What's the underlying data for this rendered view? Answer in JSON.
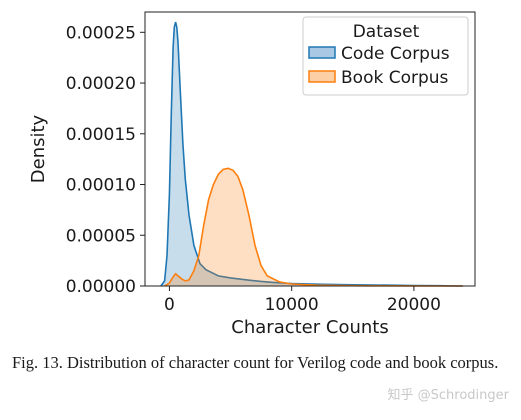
{
  "chart_data": {
    "type": "area",
    "xlabel": "Character Counts",
    "ylabel": "Density",
    "xlim": [
      -2000,
      25000
    ],
    "ylim": [
      0,
      0.00027
    ],
    "x_ticks": [
      0,
      10000,
      20000
    ],
    "x_tick_labels": [
      "0",
      "10000",
      "20000"
    ],
    "y_ticks": [
      0,
      5e-05,
      0.0001,
      0.00015,
      0.0002,
      0.00025
    ],
    "y_tick_labels": [
      "0.00000",
      "0.00005",
      "0.00010",
      "0.00015",
      "0.00020",
      "0.00025"
    ],
    "grid": false,
    "legend": {
      "title": "Dataset",
      "position": "top-right"
    },
    "series": [
      {
        "name": "Code Corpus",
        "color": "#1f77b4",
        "fill": "#a9c8e3",
        "x": [
          -700,
          -400,
          -200,
          0,
          150,
          300,
          400,
          500,
          600,
          700,
          900,
          1100,
          1300,
          1600,
          2000,
          2500,
          3000,
          3500,
          4000,
          5000,
          6000,
          6700,
          7500,
          8500,
          10000,
          12000,
          15000,
          18000,
          20000,
          22000,
          24000
        ],
        "y": [
          0,
          5e-06,
          3e-05,
          9e-05,
          0.00017,
          0.000235,
          0.000255,
          0.00026,
          0.000255,
          0.00024,
          0.00019,
          0.00014,
          0.000105,
          7e-05,
          4e-05,
          2.2e-05,
          1.6e-05,
          1.3e-05,
          1e-05,
          8e-06,
          6.5e-06,
          5.5e-06,
          4.5e-06,
          3.5e-06,
          2.5e-06,
          1.8e-06,
          1.2e-06,
          8e-07,
          5e-07,
          3e-07,
          0
        ]
      },
      {
        "name": "Book Corpus",
        "color": "#ff7f0e",
        "fill": "#fcd0a4",
        "x": [
          -400,
          0,
          300,
          500,
          700,
          1000,
          1300,
          1600,
          2000,
          2400,
          2800,
          3200,
          3600,
          4000,
          4400,
          4800,
          5200,
          5600,
          6000,
          6500,
          7000,
          7500,
          8000,
          9000,
          10000,
          12000,
          14000,
          16000,
          20000,
          24000
        ],
        "y": [
          0,
          3e-06,
          9e-06,
          1.2e-05,
          1e-05,
          7e-06,
          5e-06,
          6e-06,
          1.5e-05,
          3e-05,
          6e-05,
          8.5e-05,
          0.0001,
          0.00011,
          0.000115,
          0.000116,
          0.000114,
          0.000108,
          9.5e-05,
          7e-05,
          4e-05,
          2e-05,
          1e-05,
          4e-06,
          2e-06,
          8e-07,
          4e-07,
          2e-07,
          1e-07,
          0
        ]
      }
    ]
  },
  "caption": "Fig. 13. Distribution of character count for Verilog code and book corpus.",
  "watermark": "知乎 @Schrodinger"
}
